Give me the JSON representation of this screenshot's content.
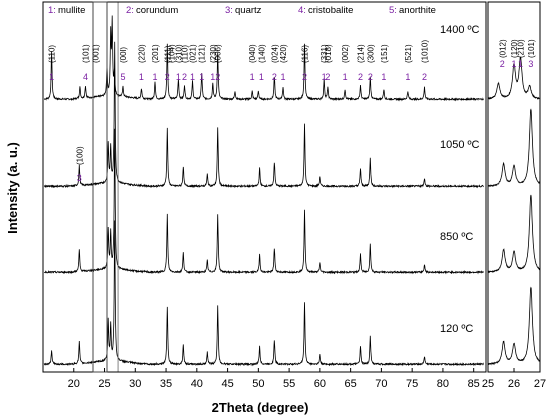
{
  "chart_data": {
    "type": "line",
    "title": "",
    "xlabel": "2Theta (degree)",
    "ylabel": "Intensity (a. u.)",
    "xlim": [
      15,
      87
    ],
    "xticks": [
      "15",
      "20",
      "25",
      "30",
      "35",
      "40",
      "45",
      "50",
      "55",
      "60",
      "65",
      "70",
      "75",
      "80",
      "85"
    ],
    "inset": {
      "xlim": [
        25,
        27
      ],
      "xticks": [
        "25",
        "26",
        "27"
      ],
      "annotations": [
        {
          "hkl": "(012)",
          "phase": "2",
          "x": 25.55
        },
        {
          "hkl": "(120)",
          "phase": "1",
          "x": 26.0
        },
        {
          "hkl": "(210)",
          "phase": "1",
          "x": 26.25
        },
        {
          "hkl": "(101)",
          "phase": "3",
          "x": 26.65
        }
      ]
    },
    "legend": [
      {
        "num": "1:",
        "name": "mullite"
      },
      {
        "num": "2:",
        "name": "corundum"
      },
      {
        "num": "3:",
        "name": "quartz"
      },
      {
        "num": "4:",
        "name": "cristobalite"
      },
      {
        "num": "5:",
        "name": "anorthite"
      }
    ],
    "series": [
      {
        "name": "1400 ºC",
        "peaks": [
          [
            16.4,
            48
          ],
          [
            21.0,
            12
          ],
          [
            21.9,
            12
          ],
          [
            25.4,
            28
          ],
          [
            26.0,
            60
          ],
          [
            26.25,
            72
          ],
          [
            26.6,
            22
          ],
          [
            28.0,
            10
          ],
          [
            31.0,
            10
          ],
          [
            33.2,
            18
          ],
          [
            35.2,
            56
          ],
          [
            37.0,
            20
          ],
          [
            38.0,
            14
          ],
          [
            39.3,
            18
          ],
          [
            40.8,
            26
          ],
          [
            42.6,
            16
          ],
          [
            43.4,
            46
          ],
          [
            46.2,
            8
          ],
          [
            49.0,
            8
          ],
          [
            50.0,
            8
          ],
          [
            52.6,
            22
          ],
          [
            54.0,
            12
          ],
          [
            57.5,
            55
          ],
          [
            60.7,
            20
          ],
          [
            61.3,
            12
          ],
          [
            64.1,
            10
          ],
          [
            66.6,
            14
          ],
          [
            68.2,
            22
          ],
          [
            70.4,
            10
          ],
          [
            74.3,
            8
          ],
          [
            77.0,
            12
          ]
        ]
      },
      {
        "name": "1050 ºC",
        "peaks": [
          [
            20.9,
            20
          ],
          [
            25.6,
            40
          ],
          [
            26.0,
            36
          ],
          [
            26.65,
            140
          ],
          [
            35.2,
            58
          ],
          [
            37.8,
            20
          ],
          [
            41.7,
            12
          ],
          [
            43.4,
            58
          ],
          [
            50.2,
            18
          ],
          [
            52.6,
            24
          ],
          [
            57.5,
            62
          ],
          [
            60.0,
            10
          ],
          [
            66.6,
            18
          ],
          [
            68.2,
            28
          ],
          [
            77.0,
            8
          ]
        ]
      },
      {
        "name": "850 ºC",
        "peaks": [
          [
            20.9,
            22
          ],
          [
            25.6,
            40
          ],
          [
            26.0,
            36
          ],
          [
            26.65,
            140
          ],
          [
            35.2,
            58
          ],
          [
            37.8,
            20
          ],
          [
            41.7,
            12
          ],
          [
            43.4,
            58
          ],
          [
            50.2,
            18
          ],
          [
            52.6,
            24
          ],
          [
            57.5,
            62
          ],
          [
            60.0,
            10
          ],
          [
            66.6,
            18
          ],
          [
            68.2,
            28
          ],
          [
            77.0,
            8
          ]
        ]
      },
      {
        "name": "120 ºC",
        "peaks": [
          [
            16.4,
            14
          ],
          [
            20.9,
            22
          ],
          [
            25.6,
            40
          ],
          [
            26.0,
            36
          ],
          [
            26.65,
            140
          ],
          [
            35.2,
            58
          ],
          [
            37.8,
            20
          ],
          [
            41.7,
            12
          ],
          [
            43.4,
            58
          ],
          [
            50.2,
            18
          ],
          [
            52.6,
            24
          ],
          [
            57.5,
            62
          ],
          [
            60.0,
            10
          ],
          [
            66.6,
            18
          ],
          [
            68.2,
            28
          ],
          [
            77.0,
            8
          ]
        ]
      }
    ],
    "annotations_1400": [
      {
        "hkl": "(110)",
        "phase": "1",
        "x": 16.4
      },
      {
        "hkl": "(101)",
        "phase": "4",
        "x": 21.9
      },
      {
        "hkl": "(001)",
        "phase": "",
        "x": 23.5
      },
      {
        "hkl": "(00l)",
        "phase": "5",
        "x": 28.0
      },
      {
        "hkl": "(220)",
        "phase": "1",
        "x": 31.0
      },
      {
        "hkl": "(201)",
        "phase": "1",
        "x": 33.2
      },
      {
        "hkl": "(111)",
        "phase": "2",
        "x": 35.2
      },
      {
        "hkl": "(104)",
        "phase": "",
        "x": 35.9
      },
      {
        "hkl": "(310)",
        "phase": "1",
        "x": 37.0
      },
      {
        "hkl": "(110)",
        "phase": "2",
        "x": 38.0
      },
      {
        "hkl": "(021)",
        "phase": "1",
        "x": 39.3
      },
      {
        "hkl": "(121)",
        "phase": "1",
        "x": 40.8
      },
      {
        "hkl": "(230)",
        "phase": "1",
        "x": 42.6
      },
      {
        "hkl": "(006)",
        "phase": "2",
        "x": 43.4
      },
      {
        "hkl": "(040)",
        "phase": "1",
        "x": 49.0
      },
      {
        "hkl": "(140)",
        "phase": "1",
        "x": 50.5
      },
      {
        "hkl": "(024)",
        "phase": "2",
        "x": 52.6
      },
      {
        "hkl": "(420)",
        "phase": "1",
        "x": 54.0
      },
      {
        "hkl": "(116)",
        "phase": "2",
        "x": 57.5
      },
      {
        "hkl": "(331)",
        "phase": "1",
        "x": 60.7
      },
      {
        "hkl": "(018)",
        "phase": "2",
        "x": 61.3
      },
      {
        "hkl": "(002)",
        "phase": "1",
        "x": 64.1
      },
      {
        "hkl": "(214)",
        "phase": "2",
        "x": 66.6
      },
      {
        "hkl": "(300)",
        "phase": "2",
        "x": 68.2
      },
      {
        "hkl": "(151)",
        "phase": "1",
        "x": 70.4
      },
      {
        "hkl": "(521)",
        "phase": "1",
        "x": 74.3
      },
      {
        "hkl": "(1010)",
        "phase": "2",
        "x": 77.0
      }
    ],
    "annotations_1050": [
      {
        "hkl": "(100)",
        "phase": "3",
        "x": 20.9
      }
    ]
  }
}
